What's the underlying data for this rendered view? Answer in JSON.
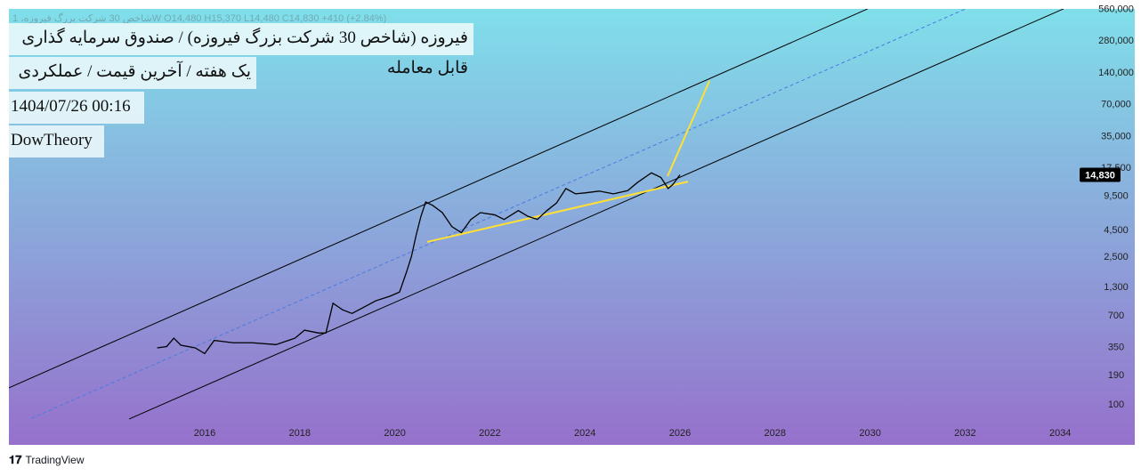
{
  "header": {
    "title": "فیروزه (شاخص 30 شرکت بزرگ فیروزه) / صندوق سرمایه گذاری قابل معامله",
    "subtitle": "یک هفته / آخرین قیمت / عملکردی",
    "datetime": "1404/07/26 00:16",
    "author": "DowTheory",
    "ohlc": "شاخص 30 شرکت بزرگ فیروزه، 1W  O14,480  H15,370  L14,480  C14,830  +410 (+2.84%)"
  },
  "brand": {
    "name": "TradingView"
  },
  "chart_data": {
    "type": "line",
    "scale": "log",
    "xlim": [
      2012,
      2034.3
    ],
    "ylim": [
      80,
      600000
    ],
    "x_ticks": [
      "2016",
      "2018",
      "2020",
      "2022",
      "2024",
      "2026",
      "2028",
      "2030",
      "2032",
      "2034"
    ],
    "y_ticks": [
      "560,000",
      "280,000",
      "140,000",
      "70,000",
      "35,000",
      "17,500",
      "9,500",
      "4,500",
      "2,500",
      "1,300",
      "700",
      "350",
      "190",
      "100"
    ],
    "last_price": "14,830",
    "background_colors": [
      "#80dfea",
      "#9671cc"
    ],
    "series": [
      {
        "color": "#000000",
        "points": [
          [
            2015.0,
            340
          ],
          [
            2015.2,
            350
          ],
          [
            2015.35,
            420
          ],
          [
            2015.5,
            360
          ],
          [
            2015.8,
            340
          ],
          [
            2016.0,
            300
          ],
          [
            2016.2,
            400
          ],
          [
            2016.6,
            380
          ],
          [
            2017.0,
            380
          ],
          [
            2017.5,
            365
          ],
          [
            2017.9,
            420
          ],
          [
            2018.1,
            500
          ],
          [
            2018.4,
            470
          ],
          [
            2018.55,
            470
          ],
          [
            2018.7,
            900
          ],
          [
            2018.9,
            780
          ],
          [
            2019.1,
            720
          ],
          [
            2019.4,
            850
          ],
          [
            2019.6,
            950
          ],
          [
            2019.9,
            1050
          ],
          [
            2020.1,
            1150
          ],
          [
            2020.25,
            1800
          ],
          [
            2020.35,
            2500
          ],
          [
            2020.45,
            4000
          ],
          [
            2020.55,
            6000
          ],
          [
            2020.65,
            8200
          ],
          [
            2020.8,
            7600
          ],
          [
            2021.0,
            6500
          ],
          [
            2021.2,
            4800
          ],
          [
            2021.4,
            4200
          ],
          [
            2021.6,
            5600
          ],
          [
            2021.8,
            6500
          ],
          [
            2022.1,
            6200
          ],
          [
            2022.3,
            5600
          ],
          [
            2022.6,
            6800
          ],
          [
            2022.8,
            6000
          ],
          [
            2023.0,
            5600
          ],
          [
            2023.2,
            6800
          ],
          [
            2023.4,
            8000
          ],
          [
            2023.6,
            11000
          ],
          [
            2023.8,
            9800
          ],
          [
            2024.0,
            10000
          ],
          [
            2024.3,
            10400
          ],
          [
            2024.6,
            9800
          ],
          [
            2024.9,
            10500
          ],
          [
            2025.1,
            12500
          ],
          [
            2025.4,
            15500
          ],
          [
            2025.6,
            14000
          ],
          [
            2025.75,
            11000
          ],
          [
            2025.85,
            12000
          ],
          [
            2026.0,
            14830
          ]
        ]
      }
    ],
    "trendlines": [
      {
        "style": "solid",
        "color": "#000000",
        "from": [
          2011.88,
          142
        ],
        "to": [
          2029.95,
          555000
        ]
      },
      {
        "style": "dashed",
        "color": "#4a7be0",
        "from": [
          2012.35,
          73
        ],
        "to": [
          2032.01,
          555000
        ]
      },
      {
        "style": "solid",
        "color": "#000000",
        "from": [
          2014.41,
          72
        ],
        "to": [
          2034.07,
          555000
        ]
      },
      {
        "style": "solid",
        "color": "#ffe033",
        "from": [
          2020.68,
          3430
        ],
        "to": [
          2026.17,
          12800
        ]
      },
      {
        "style": "solid",
        "color": "#ffe033",
        "from": [
          2025.74,
          14400
        ],
        "to": [
          2026.62,
          115000
        ]
      }
    ]
  }
}
